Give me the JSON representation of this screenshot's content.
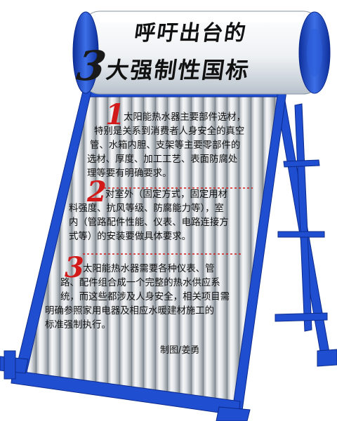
{
  "title": {
    "line1": "呼吁出台的",
    "line2_number": "3",
    "line2_text": "大强制性国标"
  },
  "items": [
    {
      "number": "1",
      "lines": [
        "太阳能热水器主要部件选材，",
        "特别是关系到消费者人身安全的真空",
        "管、水箱内胆、支架等主要零部件的",
        "选材、厚度、加工工艺、表面防腐处",
        "理等要有明确要求。"
      ]
    },
    {
      "number": "2",
      "lines": [
        "对室外（固定方式，固定用材",
        "料强度、抗风等级、防腐能力等），室",
        "内（管路配件性能、仪表、电路连接方",
        "式等）的安装要做具体要求。"
      ]
    },
    {
      "number": "3",
      "lines": [
        "太阳能热水器需要各种仪表、管",
        "路、配件组合成一个完整的热水供应系",
        "统，而这些都涉及人身安全，相关项目需",
        "明确参照家用电器及相应水暖建材施工的",
        "标准强制执行。"
      ]
    }
  ],
  "credit": "制图/姜勇",
  "colors": {
    "frame_blue": "#1f4fd0",
    "tank_white": "#f4f6f8",
    "tube_gray": "#c9ced3",
    "number_red": "#d21a1a",
    "dash_red": "#d21a1a"
  }
}
